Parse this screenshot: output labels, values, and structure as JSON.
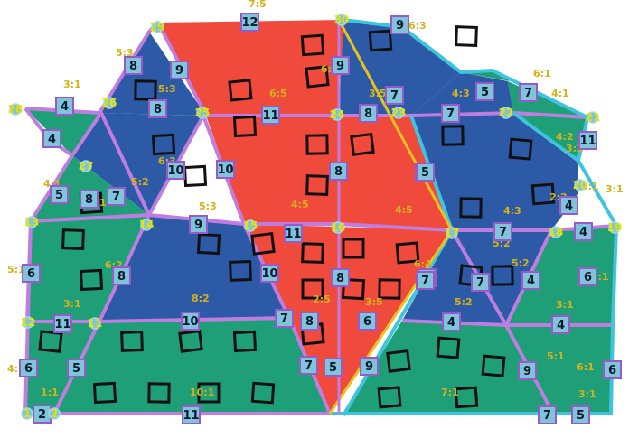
{
  "colors": {
    "red": "#f04a3c",
    "blue": "#2c5aa6",
    "green": "#1f9f78",
    "outline_purple": "#c07de0",
    "outline_cyan": "#3fc4e0",
    "highlight": "#e8c21e",
    "badge": "#7fc4d8",
    "badge_border": "#9a59c9"
  },
  "vertex_numbers": [
    "29",
    "30",
    "28",
    "26",
    "25",
    "24",
    "23",
    "22",
    "21",
    "27",
    "20",
    "13",
    "14",
    "15",
    "16",
    "17",
    "18",
    "19",
    "12",
    "11",
    "1",
    "2"
  ],
  "edge_lengths": [
    "12",
    "8",
    "9",
    "9",
    "8",
    "11",
    "8",
    "7",
    "5",
    "7",
    "4",
    "4",
    "4",
    "5",
    "7",
    "8",
    "10",
    "10",
    "9",
    "11",
    "8",
    "8",
    "9",
    "7",
    "7",
    "4",
    "4",
    "6",
    "6",
    "8",
    "10",
    "10",
    "7",
    "8",
    "6",
    "4",
    "11",
    "9",
    "5",
    "6",
    "5",
    "2",
    "11",
    "7",
    "9",
    "9",
    "7",
    "5",
    "8",
    "6",
    "4",
    "11",
    "6",
    "5",
    "7",
    "9",
    "7"
  ],
  "ratio_labels": [
    "7:5",
    "6:3",
    "5:3",
    "3:1",
    "6:1",
    "4:1",
    "5:3",
    "6:5",
    "3:5",
    "4:3",
    "4:2",
    "3:1",
    "4:1",
    "6:1",
    "5:3",
    "5:2",
    "6:3",
    "4:5",
    "4:5",
    "4:3",
    "2:2",
    "3:1",
    "3:1",
    "5:1",
    "6:2",
    "8:2",
    "3:1",
    "5:2",
    "5:2",
    "3:5",
    "2:5",
    "5:2",
    "3:1",
    "5:1",
    "4:1",
    "6:1",
    "10:1",
    "7:1",
    "3:1",
    "5:1",
    "1:1",
    "6:5",
    "6:4"
  ]
}
